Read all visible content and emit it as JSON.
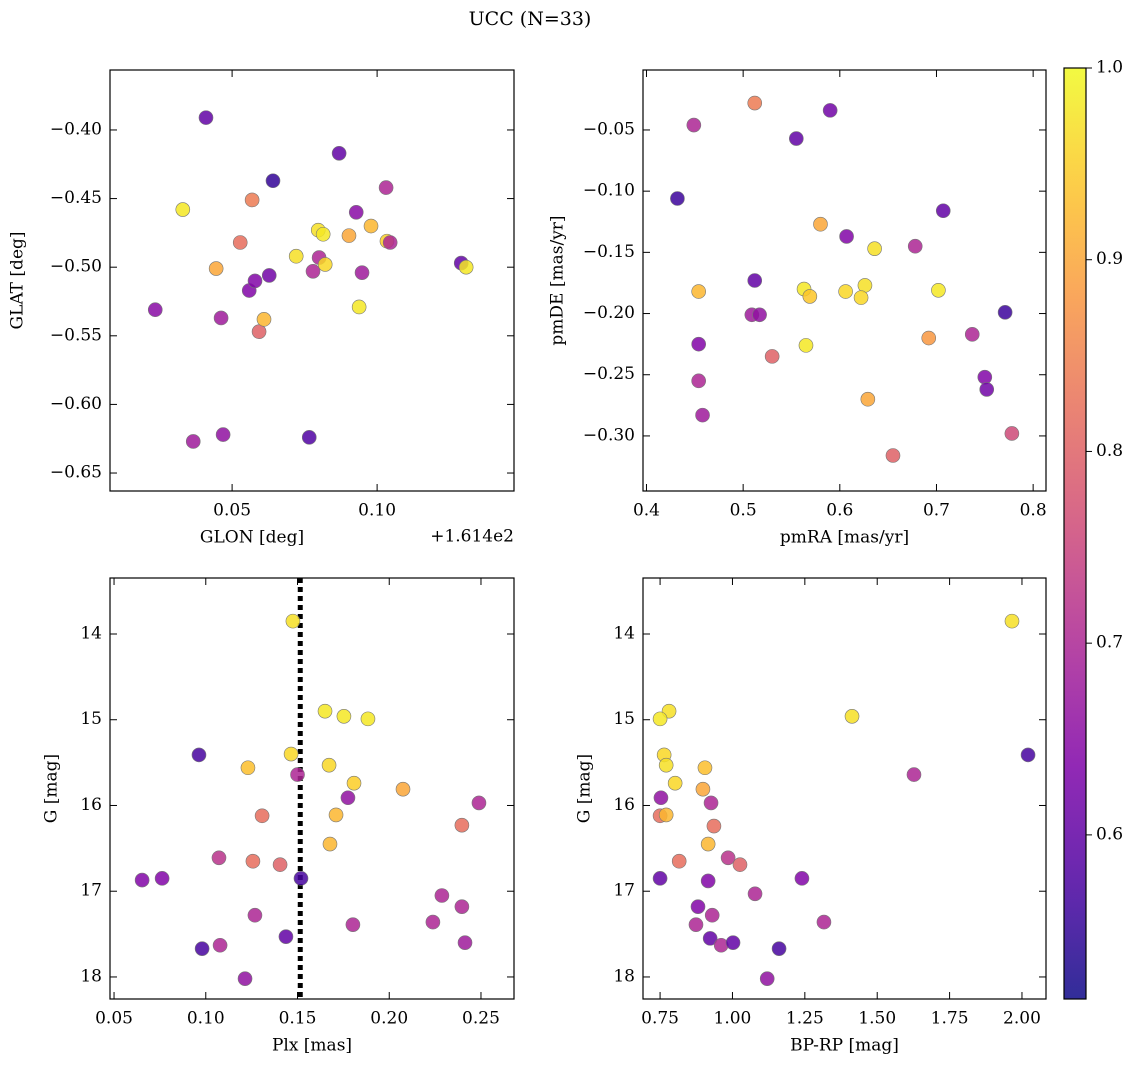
{
  "title": "UCC (N=33)",
  "colorbar": {
    "cmap": "plasma",
    "clim": [
      0.5144,
      1.0
    ],
    "ticks": [
      0.6,
      0.7,
      0.8,
      0.9,
      {
        "value": 1.0,
        "label": "1.0"
      }
    ]
  },
  "chart_data": [
    {
      "type": "scatter",
      "xlabel": "GLON [deg]",
      "ylabel": "GLAT [deg]",
      "offset_text": "+1.614e2",
      "xlim": [
        0.0079,
        0.1472
      ],
      "ylim": [
        -0.6631,
        -0.3563
      ],
      "xticks": [
        0.05,
        {
          "value": 0.1,
          "label": "0.10"
        }
      ],
      "yticks": [
        {
          "value": -0.4,
          "label": "−0.40"
        },
        {
          "value": -0.45,
          "label": "−0.45"
        },
        {
          "value": -0.5,
          "label": "−0.50"
        },
        {
          "value": -0.55,
          "label": "−0.55"
        },
        {
          "value": -0.6,
          "label": "−0.60"
        },
        {
          "value": -0.65,
          "label": "−0.65"
        }
      ],
      "x": [
        0.041,
        0.0235,
        0.033,
        0.0366,
        0.0445,
        0.0462,
        0.0469,
        0.0528,
        0.0559,
        0.0569,
        0.0579,
        0.0593,
        0.061,
        0.0628,
        0.0641,
        0.0721,
        0.0766,
        0.0779,
        0.0797,
        0.08,
        0.0814,
        0.0821,
        0.0869,
        0.0903,
        0.0928,
        0.0938,
        0.0948,
        0.0979,
        0.1031,
        0.1034,
        0.1045,
        0.129,
        0.1307
      ],
      "y": [
        -0.391,
        -0.531,
        -0.458,
        -0.627,
        -0.501,
        -0.537,
        -0.622,
        -0.482,
        -0.517,
        -0.451,
        -0.51,
        -0.547,
        -0.538,
        -0.506,
        -0.437,
        -0.492,
        -0.624,
        -0.503,
        -0.473,
        -0.493,
        -0.476,
        -0.498,
        -0.417,
        -0.477,
        -0.46,
        -0.529,
        -0.504,
        -0.47,
        -0.442,
        -0.481,
        -0.482,
        -0.497,
        -0.5
      ],
      "c": [
        0.6,
        0.65,
        0.98,
        0.68,
        0.9,
        0.68,
        0.66,
        0.82,
        0.64,
        0.84,
        0.64,
        0.8,
        0.92,
        0.62,
        0.55,
        0.97,
        0.58,
        0.7,
        0.97,
        0.7,
        0.98,
        0.96,
        0.6,
        0.9,
        0.65,
        0.98,
        0.68,
        0.92,
        0.7,
        0.95,
        0.7,
        0.6,
        0.98
      ]
    },
    {
      "type": "scatter",
      "xlabel": "pmRA [mas/yr]",
      "ylabel": "pmDE [mas/yr]",
      "xlim": [
        0.3964,
        0.8133
      ],
      "ylim": [
        -0.345,
        -0.001
      ],
      "xticks": [
        0.4,
        0.5,
        0.6,
        0.7,
        0.8
      ],
      "yticks": [
        {
          "value": -0.05,
          "label": "−0.05"
        },
        {
          "value": -0.1,
          "label": "−0.10"
        },
        {
          "value": -0.15,
          "label": "−0.15"
        },
        {
          "value": -0.2,
          "label": "−0.20"
        },
        {
          "value": -0.25,
          "label": "−0.25"
        },
        {
          "value": -0.3,
          "label": "−0.30"
        }
      ],
      "x": [
        0.512,
        0.59,
        0.449,
        0.555,
        0.432,
        0.707,
        0.607,
        0.58,
        0.678,
        0.636,
        0.454,
        0.512,
        0.563,
        0.569,
        0.606,
        0.626,
        0.622,
        0.702,
        0.771,
        0.509,
        0.517,
        0.454,
        0.565,
        0.53,
        0.692,
        0.737,
        0.454,
        0.75,
        0.752,
        0.458,
        0.629,
        0.778,
        0.655
      ],
      "y": [
        -0.028,
        -0.034,
        -0.046,
        -0.057,
        -0.106,
        -0.116,
        -0.137,
        -0.127,
        -0.145,
        -0.147,
        -0.182,
        -0.173,
        -0.18,
        -0.186,
        -0.182,
        -0.177,
        -0.187,
        -0.181,
        -0.199,
        -0.201,
        -0.201,
        -0.225,
        -0.226,
        -0.235,
        -0.22,
        -0.217,
        -0.255,
        -0.252,
        -0.262,
        -0.283,
        -0.27,
        -0.298,
        -0.316
      ],
      "c": [
        0.84,
        0.62,
        0.7,
        0.6,
        0.56,
        0.6,
        0.64,
        0.9,
        0.7,
        0.97,
        0.92,
        0.6,
        0.98,
        0.94,
        0.96,
        0.97,
        0.96,
        0.98,
        0.56,
        0.68,
        0.66,
        0.64,
        0.98,
        0.8,
        0.88,
        0.7,
        0.7,
        0.64,
        0.62,
        0.68,
        0.9,
        0.76,
        0.8
      ]
    },
    {
      "type": "scatter",
      "xlabel": "Plx [mas]",
      "ylabel": "G [mag]",
      "vline": 0.1515,
      "xlim": [
        0.0478,
        0.268
      ],
      "ylim": [
        18.257,
        13.347
      ],
      "xticks": [
        0.05,
        {
          "value": 0.1,
          "label": "0.10"
        },
        0.15,
        {
          "value": 0.2,
          "label": "0.20"
        },
        0.25
      ],
      "yticks": [
        14,
        15,
        16,
        17,
        18
      ],
      "x": [
        0.1475,
        0.165,
        0.1753,
        0.1884,
        0.0963,
        0.1465,
        0.123,
        0.15,
        0.1672,
        0.1808,
        0.1775,
        0.2075,
        0.2489,
        0.1307,
        0.171,
        0.2396,
        0.1677,
        0.1072,
        0.1257,
        0.1405,
        0.0653,
        0.0762,
        0.1519,
        0.2287,
        0.1268,
        0.2396,
        0.2238,
        0.1802,
        0.1437,
        0.1078,
        0.2413,
        0.098,
        0.1214
      ],
      "y": [
        13.85,
        14.9,
        14.96,
        14.99,
        15.41,
        15.4,
        15.56,
        15.64,
        15.53,
        15.74,
        15.91,
        15.81,
        15.97,
        16.12,
        16.11,
        16.23,
        16.45,
        16.61,
        16.65,
        16.69,
        16.87,
        16.85,
        16.85,
        17.05,
        17.28,
        17.18,
        17.36,
        17.39,
        17.53,
        17.63,
        17.6,
        17.67,
        18.02
      ],
      "c": [
        0.97,
        0.98,
        0.98,
        0.98,
        0.57,
        0.96,
        0.93,
        0.7,
        0.96,
        0.95,
        0.66,
        0.9,
        0.7,
        0.82,
        0.92,
        0.82,
        0.92,
        0.72,
        0.82,
        0.8,
        0.64,
        0.64,
        0.57,
        0.7,
        0.7,
        0.7,
        0.7,
        0.7,
        0.6,
        0.7,
        0.68,
        0.57,
        0.66
      ]
    },
    {
      "type": "scatter",
      "xlabel": "BP-RP [mag]",
      "ylabel": "G [mag]",
      "xlim": [
        0.691,
        2.083
      ],
      "ylim": [
        18.257,
        13.347
      ],
      "xticks": [
        0.75,
        {
          "value": 1.0,
          "label": "1.00"
        },
        1.25,
        {
          "value": 1.5,
          "label": "1.50"
        },
        1.75,
        {
          "value": 2.0,
          "label": "2.00"
        }
      ],
      "yticks": [
        14,
        15,
        16,
        17,
        18
      ],
      "x": [
        1.9655,
        0.781,
        0.75,
        1.413,
        0.764,
        0.771,
        0.802,
        0.905,
        2.021,
        1.627,
        0.898,
        0.753,
        0.926,
        0.75,
        0.771,
        0.936,
        0.916,
        0.816,
        0.985,
        1.026,
        0.75,
        0.916,
        1.24,
        1.078,
        0.881,
        0.93,
        1.316,
        0.874,
        0.923,
        0.961,
        1.002,
        1.161,
        1.12
      ],
      "y": [
        13.85,
        14.9,
        14.99,
        14.96,
        15.41,
        15.53,
        15.74,
        15.56,
        15.41,
        15.64,
        15.81,
        15.91,
        15.97,
        16.12,
        16.11,
        16.24,
        16.45,
        16.65,
        16.61,
        16.69,
        16.85,
        16.88,
        16.85,
        17.03,
        17.18,
        17.28,
        17.36,
        17.39,
        17.55,
        17.63,
        17.6,
        17.67,
        18.02
      ],
      "c": [
        0.97,
        0.97,
        0.98,
        0.97,
        0.96,
        0.97,
        0.96,
        0.93,
        0.57,
        0.7,
        0.9,
        0.66,
        0.7,
        0.82,
        0.92,
        0.82,
        0.92,
        0.82,
        0.72,
        0.8,
        0.6,
        0.64,
        0.64,
        0.7,
        0.64,
        0.7,
        0.7,
        0.7,
        0.6,
        0.7,
        0.6,
        0.57,
        0.66
      ]
    }
  ]
}
